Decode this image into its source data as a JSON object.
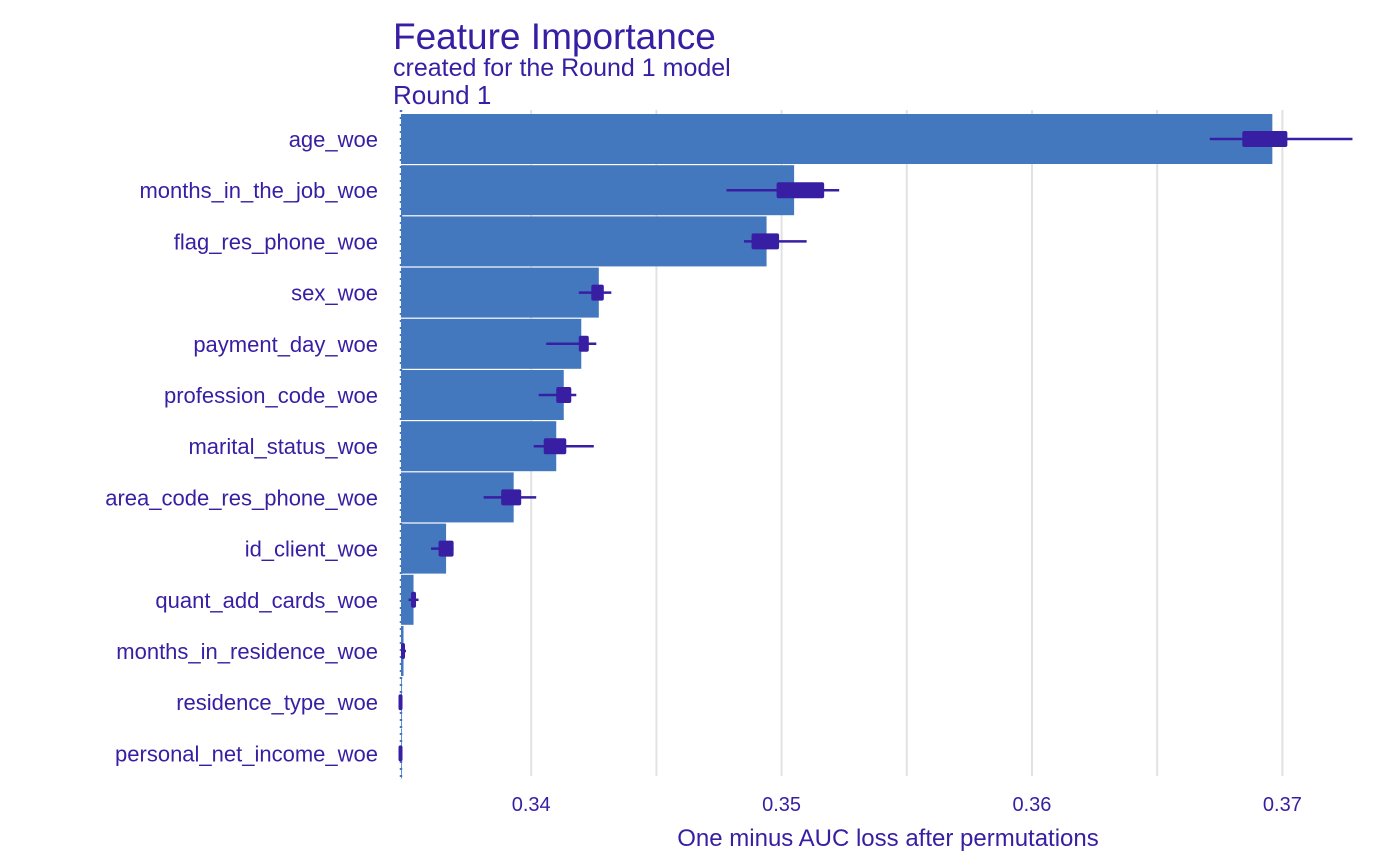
{
  "colors": {
    "text": "#371ea3",
    "bar": "#4378bf",
    "box": "#371ea3",
    "grid": "#e2e2e2",
    "baseline": "#4378bf"
  },
  "chart_data": {
    "type": "bar",
    "orientation": "horizontal",
    "title": "Feature Importance",
    "subtitle": "created for the Round 1 model",
    "panel_label": "Round 1",
    "xlabel": "One minus AUC loss after permutations",
    "ylabel": "",
    "xlim": [
      0.3346,
      0.3735
    ],
    "xticks": [
      0.34,
      0.35,
      0.36,
      0.37
    ],
    "xtick_labels": [
      "0.34",
      "0.35",
      "0.36",
      "0.37"
    ],
    "minor_gridlines": [
      0.345,
      0.355,
      0.365
    ],
    "grid": true,
    "baseline": 0.3348,
    "categories": [
      "age_woe",
      "months_in_the_job_woe",
      "flag_res_phone_woe",
      "sex_woe",
      "payment_day_woe",
      "profession_code_woe",
      "marital_status_woe",
      "area_code_res_phone_woe",
      "id_client_woe",
      "quant_add_cards_woe",
      "months_in_residence_woe",
      "residence_type_woe",
      "personal_net_income_woe"
    ],
    "values": [
      0.3696,
      0.3505,
      0.3494,
      0.3427,
      0.342,
      0.3413,
      0.341,
      0.3393,
      0.3366,
      0.3353,
      0.3349,
      0.3348,
      0.3348
    ],
    "boxplots": [
      {
        "min": 0.3671,
        "q1": 0.3684,
        "q3": 0.3702,
        "max": 0.3728
      },
      {
        "min": 0.3478,
        "q1": 0.3498,
        "q3": 0.3517,
        "max": 0.3523
      },
      {
        "min": 0.3485,
        "q1": 0.3488,
        "q3": 0.3499,
        "max": 0.351
      },
      {
        "min": 0.3419,
        "q1": 0.3424,
        "q3": 0.3429,
        "max": 0.3432
      },
      {
        "min": 0.3406,
        "q1": 0.3419,
        "q3": 0.3423,
        "max": 0.3426
      },
      {
        "min": 0.3403,
        "q1": 0.341,
        "q3": 0.3416,
        "max": 0.3418
      },
      {
        "min": 0.3401,
        "q1": 0.3405,
        "q3": 0.3414,
        "max": 0.3425
      },
      {
        "min": 0.3381,
        "q1": 0.3388,
        "q3": 0.3396,
        "max": 0.3402
      },
      {
        "min": 0.336,
        "q1": 0.3363,
        "q3": 0.3369,
        "max": 0.3369
      },
      {
        "min": 0.3351,
        "q1": 0.3352,
        "q3": 0.3354,
        "max": 0.3355
      },
      {
        "min": 0.3348,
        "q1": 0.3348,
        "q3": 0.3349,
        "max": 0.335
      },
      {
        "min": 0.3347,
        "q1": 0.3347,
        "q3": 0.3348,
        "max": 0.3348
      },
      {
        "min": 0.3347,
        "q1": 0.3347,
        "q3": 0.3348,
        "max": 0.3348
      }
    ]
  }
}
